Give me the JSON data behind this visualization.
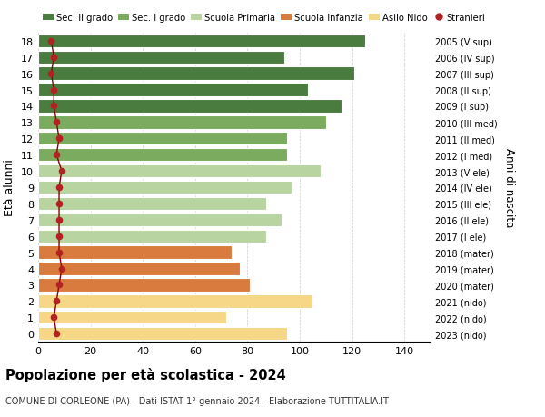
{
  "ages": [
    18,
    17,
    16,
    15,
    14,
    13,
    12,
    11,
    10,
    9,
    8,
    7,
    6,
    5,
    4,
    3,
    2,
    1,
    0
  ],
  "values": [
    125,
    94,
    121,
    103,
    116,
    110,
    95,
    95,
    108,
    97,
    87,
    93,
    87,
    74,
    77,
    81,
    105,
    72,
    95
  ],
  "stranieri": [
    5,
    6,
    5,
    6,
    6,
    7,
    8,
    7,
    9,
    8,
    8,
    8,
    8,
    8,
    9,
    8,
    7,
    6,
    7
  ],
  "right_labels": [
    "2005 (V sup)",
    "2006 (IV sup)",
    "2007 (III sup)",
    "2008 (II sup)",
    "2009 (I sup)",
    "2010 (III med)",
    "2011 (II med)",
    "2012 (I med)",
    "2013 (V ele)",
    "2014 (IV ele)",
    "2015 (III ele)",
    "2016 (II ele)",
    "2017 (I ele)",
    "2018 (mater)",
    "2019 (mater)",
    "2020 (mater)",
    "2021 (nido)",
    "2022 (nido)",
    "2023 (nido)"
  ],
  "bar_colors": [
    "#4a7c3f",
    "#4a7c3f",
    "#4a7c3f",
    "#4a7c3f",
    "#4a7c3f",
    "#7aab5e",
    "#7aab5e",
    "#7aab5e",
    "#b8d4a0",
    "#b8d4a0",
    "#b8d4a0",
    "#b8d4a0",
    "#b8d4a0",
    "#d97b3e",
    "#d97b3e",
    "#d97b3e",
    "#f5d787",
    "#f5d787",
    "#f5d787"
  ],
  "stranieri_color": "#b22222",
  "stranieri_line_color": "#8b0000",
  "title": "Popolazione per età scolastica - 2024",
  "subtitle": "COMUNE DI CORLEONE (PA) - Dati ISTAT 1° gennaio 2024 - Elaborazione TUTTITALIA.IT",
  "ylabel_left": "Età alunni",
  "ylabel_right": "Anni di nascita",
  "legend_labels": [
    "Sec. II grado",
    "Sec. I grado",
    "Scuola Primaria",
    "Scuola Infanzia",
    "Asilo Nido",
    "Stranieri"
  ],
  "legend_colors": [
    "#4a7c3f",
    "#7aab5e",
    "#b8d4a0",
    "#d97b3e",
    "#f5d787",
    "#b22222"
  ],
  "xlim": [
    0,
    150
  ],
  "xticks": [
    0,
    20,
    40,
    60,
    80,
    100,
    120,
    140
  ],
  "bg_color": "#ffffff",
  "grid_color": "#cccccc"
}
